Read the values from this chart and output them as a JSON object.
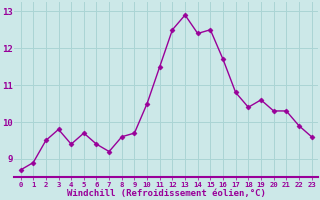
{
  "x": [
    0,
    1,
    2,
    3,
    4,
    5,
    6,
    7,
    8,
    9,
    10,
    11,
    12,
    13,
    14,
    15,
    16,
    17,
    18,
    19,
    20,
    21,
    22,
    23
  ],
  "y": [
    8.7,
    8.9,
    9.5,
    9.8,
    9.4,
    9.7,
    9.4,
    9.2,
    9.6,
    9.7,
    10.5,
    11.5,
    12.5,
    12.9,
    12.4,
    12.5,
    11.7,
    10.8,
    10.4,
    10.6,
    10.3,
    10.3,
    9.9,
    9.6
  ],
  "line_color": "#990099",
  "marker": "D",
  "marker_size": 2.5,
  "bg_color": "#cce8e8",
  "grid_color": "#aad4d4",
  "tick_label_color": "#990099",
  "xlabel": "Windchill (Refroidissement éolien,°C)",
  "xlabel_color": "#990099",
  "ylim": [
    8.5,
    13.25
  ],
  "yticks": [
    9,
    10,
    11,
    12,
    13
  ],
  "xticks": [
    0,
    1,
    2,
    3,
    4,
    5,
    6,
    7,
    8,
    9,
    10,
    11,
    12,
    13,
    14,
    15,
    16,
    17,
    18,
    19,
    20,
    21,
    22,
    23
  ],
  "line_width": 1.0,
  "spine_color": "#990099"
}
